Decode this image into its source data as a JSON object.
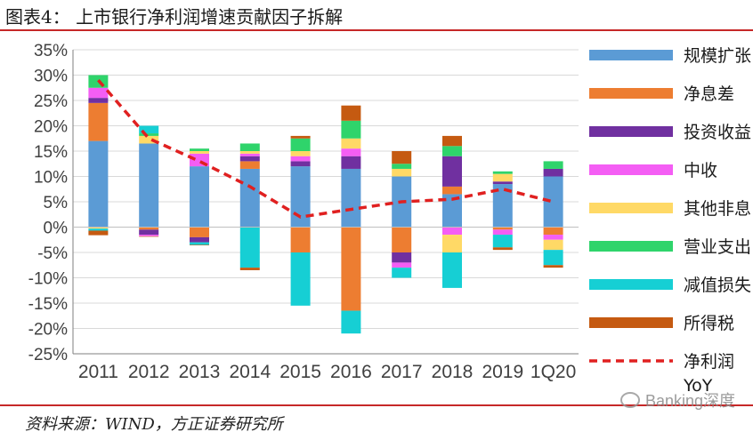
{
  "header": {
    "title": "图表4：  上市银行净利润增速贡献因子拆解"
  },
  "footer": {
    "source": "资料来源：WIND，方正证券研究所",
    "watermark": "Banking深度"
  },
  "colors": {
    "规模扩张": "#5b9bd5",
    "净息差": "#ed7d31",
    "投资收益": "#7030a0",
    "中收": "#f45ef4",
    "其他非息": "#ffd966",
    "营业支出": "#2fd46b",
    "减值损失": "#16cfd4",
    "所得税": "#c55a11",
    "净利润 YoY": "#e02020",
    "grid": "#d9d9d9",
    "axis": "#7f7f7f"
  },
  "chart_data": {
    "type": "bar",
    "stacked": true,
    "title": "",
    "xlabel": "",
    "ylabel": "",
    "ylim": [
      -25,
      35
    ],
    "yticks": [
      "-25%",
      "-20%",
      "-15%",
      "-10%",
      "-5%",
      "0%",
      "5%",
      "10%",
      "15%",
      "20%",
      "25%",
      "30%",
      "35%"
    ],
    "categories": [
      "2011",
      "2012",
      "2013",
      "2014",
      "2015",
      "2016",
      "2017",
      "2018",
      "2019",
      "1Q20"
    ],
    "series": [
      {
        "name": "规模扩张",
        "values": [
          17.0,
          16.5,
          12.0,
          11.5,
          12.0,
          11.5,
          10.0,
          6.5,
          8.5,
          10.0
        ]
      },
      {
        "name": "净息差",
        "values": [
          7.5,
          -0.5,
          -2.0,
          1.5,
          -5.0,
          -16.5,
          -5.0,
          1.5,
          -0.5,
          -1.5
        ]
      },
      {
        "name": "投资收益",
        "values": [
          1.0,
          -1.0,
          -1.0,
          1.0,
          1.0,
          2.5,
          -2.0,
          6.0,
          0.5,
          1.5
        ]
      },
      {
        "name": "中收",
        "values": [
          2.0,
          -0.3,
          2.5,
          0.5,
          1.0,
          1.5,
          -1.0,
          -1.5,
          -1.0,
          -1.0
        ]
      },
      {
        "name": "其他非息",
        "values": [
          -0.3,
          1.5,
          0.5,
          0.5,
          1.0,
          2.0,
          1.5,
          -3.5,
          1.5,
          -2.0
        ]
      },
      {
        "name": "营业支出",
        "values": [
          2.5,
          0.5,
          0.5,
          1.5,
          2.5,
          3.5,
          1.0,
          2.0,
          0.5,
          1.5
        ]
      },
      {
        "name": "减值损失",
        "values": [
          -0.4,
          1.5,
          -0.5,
          -8.0,
          -10.5,
          -4.5,
          -2.0,
          -7.0,
          -2.5,
          -3.0
        ]
      },
      {
        "name": "所得税",
        "values": [
          -0.9,
          -0.1,
          -0.1,
          -0.5,
          0.5,
          3.0,
          2.5,
          2.0,
          -0.5,
          -0.5
        ]
      }
    ],
    "line": {
      "name": "净利润 YoY",
      "values": [
        29.0,
        17.5,
        13.0,
        8.0,
        2.0,
        3.5,
        5.0,
        5.5,
        7.5,
        5.0
      ]
    },
    "legend": {
      "placement": "right",
      "labels": [
        "规模扩张",
        "净息差",
        "投资收益",
        "中收",
        "其他非息",
        "营业支出",
        "减值损失",
        "所得税",
        "净利润",
        "YoY"
      ]
    }
  }
}
